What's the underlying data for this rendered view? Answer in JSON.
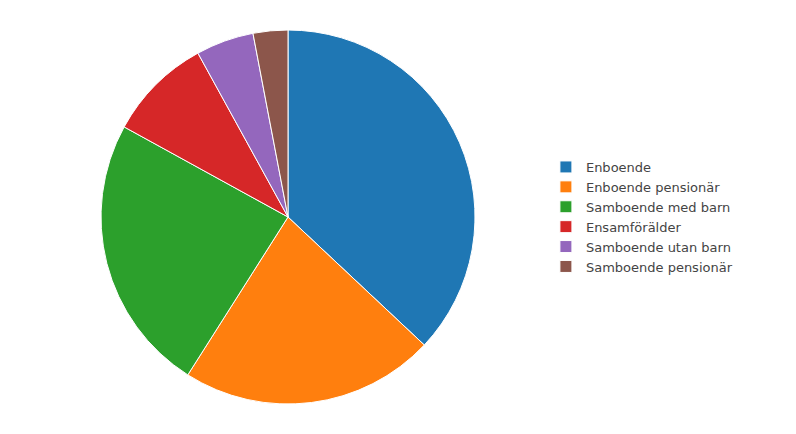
{
  "chart_data": {
    "type": "pie",
    "categories": [
      "Enboende",
      "Enboende pensionär",
      "Samboende med barn",
      "Ensamförälder",
      "Samboende utan barn",
      "Samboende pensionär"
    ],
    "values": [
      37,
      22,
      24,
      9,
      5,
      3
    ],
    "data_labels": false,
    "legend": "right"
  }
}
